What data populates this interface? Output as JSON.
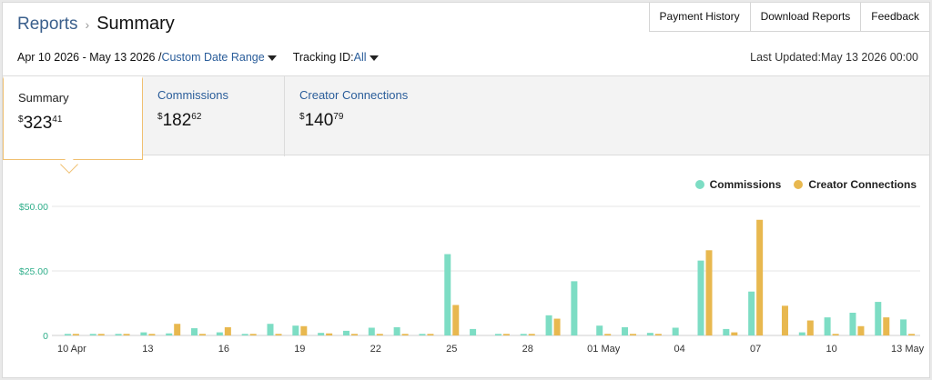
{
  "breadcrumb": {
    "parent": "Reports",
    "current": "Summary"
  },
  "topbar": {
    "buttons": [
      "Payment History",
      "Download Reports",
      "Feedback"
    ]
  },
  "filters": {
    "date_range_text": "Apr 10 2026 - May 13 2026 /",
    "date_range_link": "Custom Date Range",
    "tracking_label": "Tracking ID:",
    "tracking_value": "All"
  },
  "last_updated": "Last Updated:May 13 2026 00:00",
  "tabs": [
    {
      "label": "Summary",
      "currency": "$",
      "dollars": "323",
      "cents": "41",
      "selected": true
    },
    {
      "label": "Commissions",
      "currency": "$",
      "dollars": "182",
      "cents": "62",
      "selected": false
    },
    {
      "label": "Creator Connections",
      "currency": "$",
      "dollars": "140",
      "cents": "79",
      "selected": false
    }
  ],
  "colors": {
    "commissions": "#7dddc4",
    "creator_connections": "#e8b84f",
    "accent_link": "#2a5d9a"
  },
  "chart_data": {
    "type": "bar",
    "ylim": [
      0,
      50
    ],
    "yticks": [
      "$50.00",
      "$25.00",
      "0"
    ],
    "ytick_values": [
      50,
      25,
      0
    ],
    "categories": [
      "Apr 10",
      "Apr 11",
      "Apr 12",
      "Apr 13",
      "Apr 14",
      "Apr 15",
      "Apr 16",
      "Apr 17",
      "Apr 18",
      "Apr 19",
      "Apr 20",
      "Apr 21",
      "Apr 22",
      "Apr 23",
      "Apr 24",
      "Apr 25",
      "Apr 26",
      "Apr 27",
      "Apr 28",
      "Apr 29",
      "Apr 30",
      "May 01",
      "May 02",
      "May 03",
      "May 04",
      "May 05",
      "May 06",
      "May 07",
      "May 08",
      "May 09",
      "May 10",
      "May 11",
      "May 12",
      "May 13"
    ],
    "xtick_labels": [
      {
        "index": 0,
        "label": "10 Apr"
      },
      {
        "index": 3,
        "label": "13"
      },
      {
        "index": 6,
        "label": "16"
      },
      {
        "index": 9,
        "label": "19"
      },
      {
        "index": 12,
        "label": "22"
      },
      {
        "index": 15,
        "label": "25"
      },
      {
        "index": 18,
        "label": "28"
      },
      {
        "index": 21,
        "label": "01 May"
      },
      {
        "index": 24,
        "label": "04"
      },
      {
        "index": 27,
        "label": "07"
      },
      {
        "index": 30,
        "label": "10"
      },
      {
        "index": 33,
        "label": "13 May"
      }
    ],
    "legend_position": "top-right",
    "series": [
      {
        "name": "Commissions",
        "values": [
          0.6,
          0.6,
          0.6,
          1.2,
          0.8,
          2.8,
          1.2,
          0.6,
          4.5,
          3.8,
          1.0,
          1.8,
          3.0,
          3.2,
          0.6,
          31.5,
          2.5,
          0.6,
          0.6,
          7.8,
          21,
          3.8,
          3.2,
          1.0,
          3.0,
          29,
          2.5,
          17,
          0,
          1.2,
          7.0,
          8.8,
          13,
          6.2
        ]
      },
      {
        "name": "Creator Connections",
        "values": [
          0.6,
          0.6,
          0.6,
          0.6,
          4.5,
          0.6,
          3.2,
          0.6,
          0.6,
          3.6,
          0.8,
          0.6,
          0.6,
          0.6,
          0.6,
          11.8,
          0,
          0.6,
          0.6,
          6.5,
          0,
          0.6,
          0.6,
          0.6,
          0,
          33,
          1.2,
          44.8,
          11.5,
          5.8,
          0.6,
          3.6,
          7.0,
          0.6
        ]
      }
    ]
  }
}
